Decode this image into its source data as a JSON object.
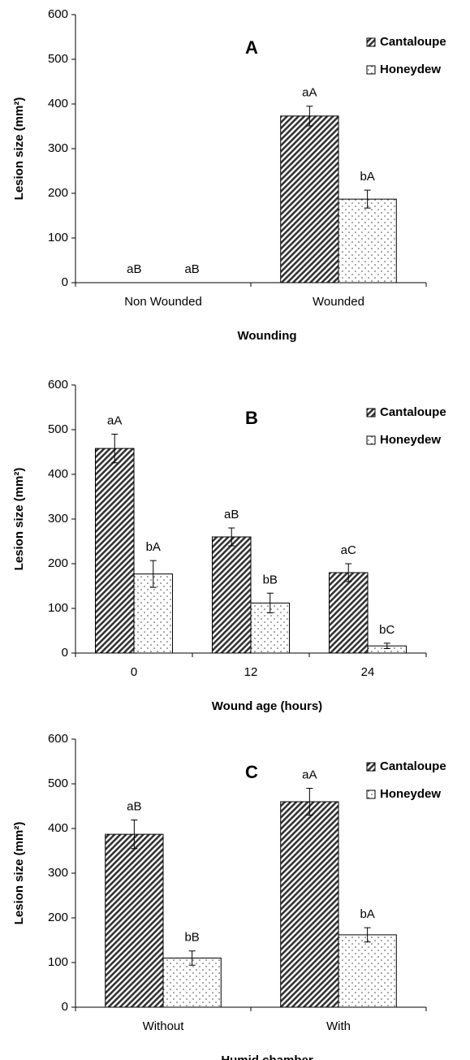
{
  "chart_data": [
    {
      "type": "bar",
      "title": "A",
      "x_label": "Wounding",
      "y_label": "Lesion size (mm²)",
      "categories": [
        "Non Wounded",
        "Wounded"
      ],
      "series": [
        {
          "name": "Cantaloupe",
          "pattern": "hatch",
          "values": [
            0,
            373
          ],
          "errors": [
            0,
            22
          ],
          "labels": [
            "aB",
            "aA"
          ]
        },
        {
          "name": "Honeydew",
          "pattern": "dots",
          "values": [
            0,
            187
          ],
          "errors": [
            0,
            20
          ],
          "labels": [
            "aB",
            "bA"
          ]
        }
      ],
      "ylim": [
        0,
        600
      ],
      "yticks": [
        0,
        100,
        200,
        300,
        400,
        500,
        600
      ],
      "legend": "upper right"
    },
    {
      "type": "bar",
      "title": "B",
      "x_label": "Wound age (hours)",
      "y_label": "Lesion size (mm²)",
      "categories": [
        "0",
        "12",
        "24"
      ],
      "series": [
        {
          "name": "Cantaloupe",
          "pattern": "hatch",
          "values": [
            458,
            260,
            180
          ],
          "errors": [
            32,
            20,
            20
          ],
          "labels": [
            "aA",
            "aB",
            "aC"
          ]
        },
        {
          "name": "Honeydew",
          "pattern": "dots",
          "values": [
            177,
            112,
            16
          ],
          "errors": [
            30,
            22,
            6
          ],
          "labels": [
            "bA",
            "bB",
            "bC"
          ]
        }
      ],
      "ylim": [
        0,
        600
      ],
      "yticks": [
        0,
        100,
        200,
        300,
        400,
        500,
        600
      ],
      "legend": "upper right"
    },
    {
      "type": "bar",
      "title": "C",
      "x_label": "Humid chamber",
      "y_label": "Lesion size (mm²)",
      "categories": [
        "Without",
        "With"
      ],
      "series": [
        {
          "name": "Cantaloupe",
          "pattern": "hatch",
          "values": [
            387,
            460
          ],
          "errors": [
            32,
            30
          ],
          "labels": [
            "aB",
            "aA"
          ]
        },
        {
          "name": "Honeydew",
          "pattern": "dots",
          "values": [
            110,
            162
          ],
          "errors": [
            16,
            16
          ],
          "labels": [
            "bB",
            "bA"
          ]
        }
      ],
      "ylim": [
        0,
        600
      ],
      "yticks": [
        0,
        100,
        200,
        300,
        400,
        500,
        600
      ],
      "legend": "upper right"
    }
  ]
}
